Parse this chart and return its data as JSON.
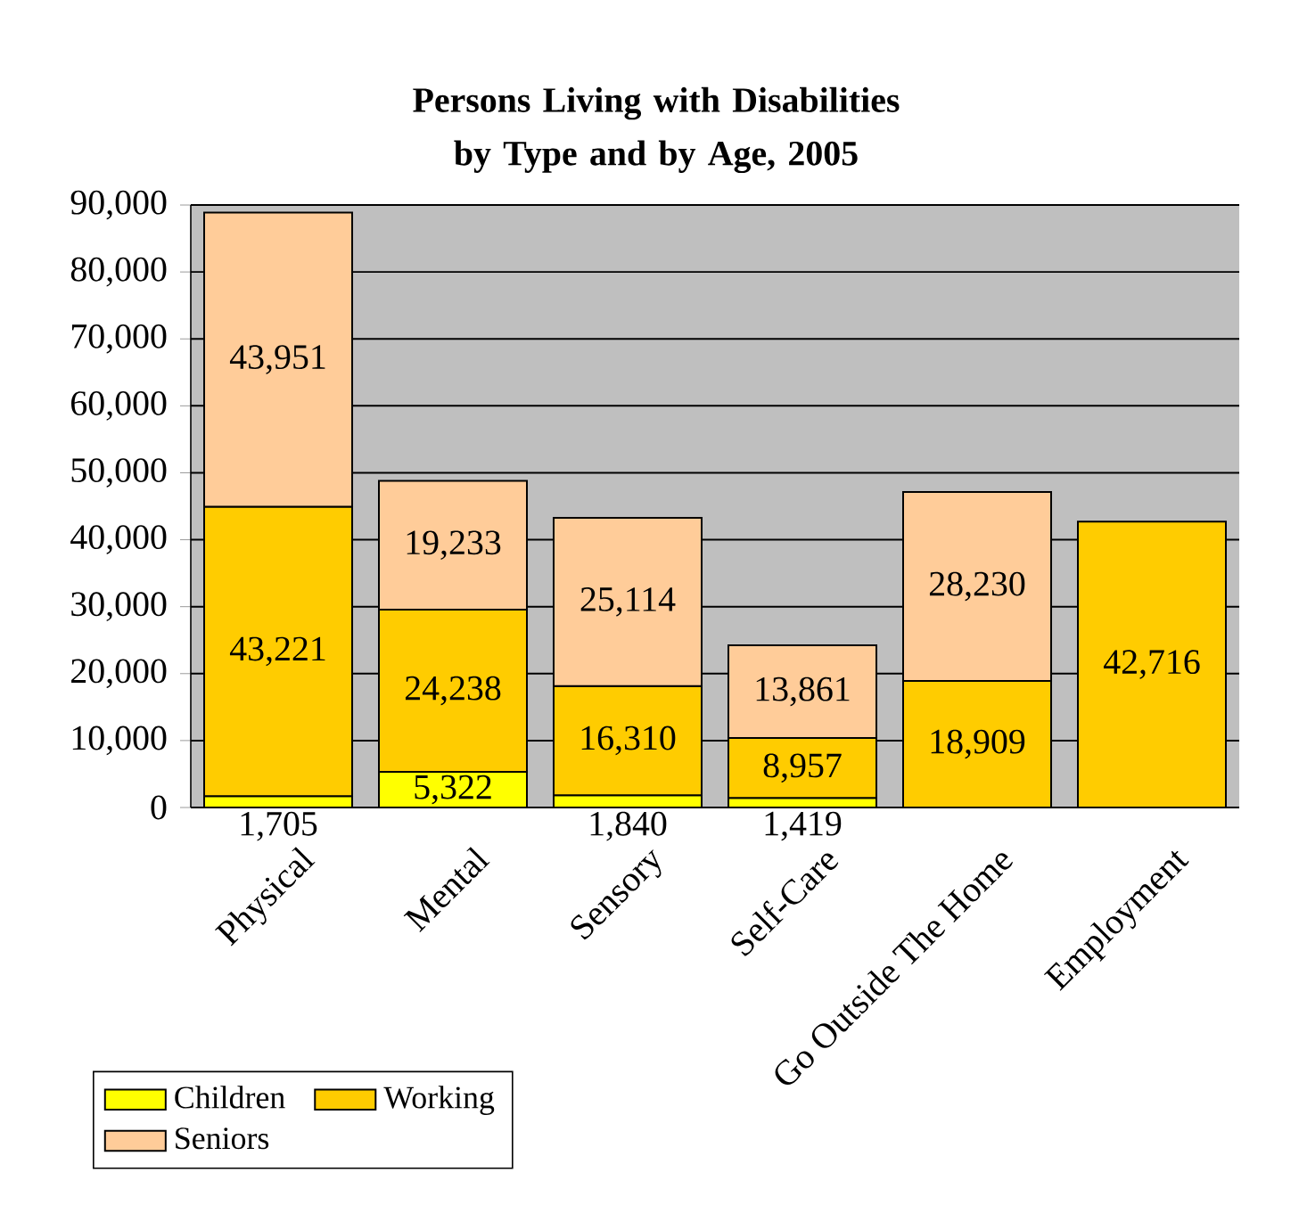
{
  "chart_data": {
    "type": "bar",
    "title": "Persons Living with Disabilities by Type and by Age, 2005",
    "categories": [
      "Physical",
      "Mental",
      "Sensory",
      "Self-Care",
      "Go Outside The Home",
      "Employment"
    ],
    "series": [
      {
        "name": "Children",
        "color": "#ffff00",
        "values": [
          1705,
          5322,
          1840,
          1419,
          null,
          null
        ],
        "value_labels": [
          "1,705",
          "5,322",
          "1,840",
          "1,419",
          null,
          null
        ]
      },
      {
        "name": "Working",
        "color": "#ffcc00",
        "values": [
          43221,
          24238,
          16310,
          8957,
          18909,
          42716
        ],
        "value_labels": [
          "43,221",
          "24,238",
          "16,310",
          "8,957",
          "18,909",
          "42,716"
        ]
      },
      {
        "name": "Seniors",
        "color": "#ffcc99",
        "values": [
          43951,
          19233,
          25114,
          13861,
          28230,
          null
        ],
        "value_labels": [
          "43,951",
          "19,233",
          "25,114",
          "13,861",
          "28,230",
          null
        ]
      }
    ],
    "stacked": true,
    "grid": "y",
    "legend": "bottom left",
    "ylim": [
      0,
      90000
    ],
    "yticks": [
      0,
      {
        "value": 10000,
        "label": "10,000"
      },
      {
        "value": 20000,
        "label": "20,000"
      },
      {
        "value": 30000,
        "label": "30,000"
      },
      {
        "value": 40000,
        "label": "40,000"
      },
      {
        "value": 50000,
        "label": "50,000"
      },
      {
        "value": 60000,
        "label": "60,000"
      },
      {
        "value": 70000,
        "label": "70,000"
      },
      {
        "value": 80000,
        "label": "80,000"
      },
      {
        "value": 90000,
        "label": "90,000"
      }
    ]
  }
}
